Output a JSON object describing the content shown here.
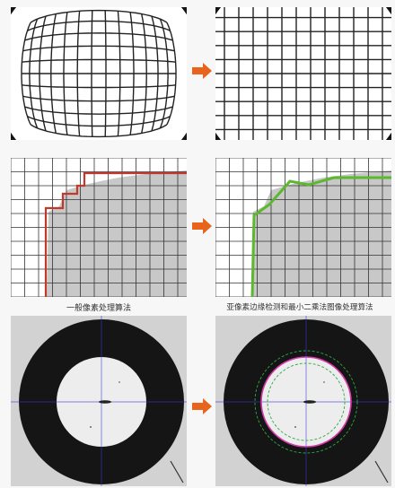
{
  "captions": {
    "left": "一般像素处理算法",
    "right": "亚像素边缘检测和最小二乘法图像处理算法"
  },
  "colors": {
    "arrow": "#e8631c",
    "pixel_edge": "#c0392b",
    "subpixel_edge": "#5cb82c",
    "fill_gray": "#c8c8c8",
    "grid": "#222222",
    "ring": "#151515",
    "crosshair": "#3a3ad0",
    "fit_circle": "#d43aa8",
    "fit_bounds": "#2ea84a"
  },
  "icons": {
    "arrow": "right-arrow-icon"
  }
}
